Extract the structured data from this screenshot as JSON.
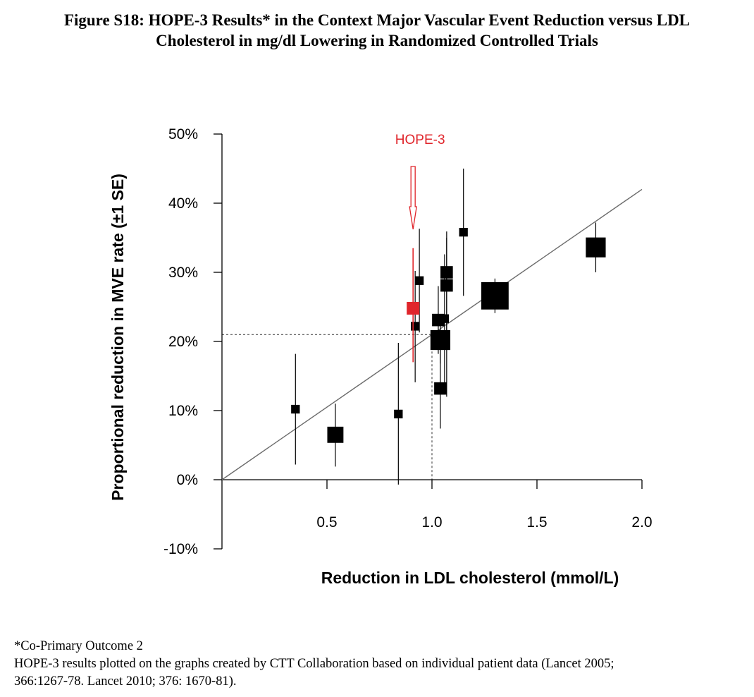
{
  "title": {
    "line1": "Figure S18: HOPE-3 Results* in the Context Major Vascular Event Reduction versus LDL",
    "line2": "Cholesterol in mg/dl Lowering in Randomized Controlled Trials"
  },
  "footnote": {
    "line1": "*Co-Primary Outcome 2",
    "line2": "HOPE-3 results plotted on the graphs created by CTT Collaboration based on individual patient data (Lancet 2005;",
    "line3": "366:1267-78. Lancet 2010; 376: 1670-81)."
  },
  "colors": {
    "highlight": "#e0252b",
    "points": "#000000",
    "line": "#6b6b6b"
  },
  "chart_data": {
    "type": "scatter",
    "xlabel": "Reduction in LDL cholesterol (mmol/L)",
    "ylabel": "Proportional reduction in MVE rate (±1 SE)",
    "xlim": [
      0,
      2.0
    ],
    "ylim": [
      -10,
      50
    ],
    "x_ticks": [
      {
        "value": 0.5,
        "label": "0.5"
      },
      {
        "value": 1.0,
        "label": "1.0"
      },
      {
        "value": 1.5,
        "label": "1.5"
      },
      {
        "value": 2.0,
        "label": "2.0"
      }
    ],
    "y_ticks": [
      {
        "value": -10,
        "label": "-10%"
      },
      {
        "value": 0,
        "label": "0%"
      },
      {
        "value": 10,
        "label": "10%"
      },
      {
        "value": 20,
        "label": "20%"
      },
      {
        "value": 30,
        "label": "30%"
      },
      {
        "value": 40,
        "label": "40%"
      },
      {
        "value": 50,
        "label": "50%"
      }
    ],
    "trials": [
      {
        "x": 0.35,
        "y": 10.2,
        "low": 2.2,
        "high": 18.2,
        "weight": 1
      },
      {
        "x": 0.54,
        "y": 6.5,
        "low": 1.9,
        "high": 11.0,
        "weight": 3
      },
      {
        "x": 0.84,
        "y": 9.5,
        "low": -0.7,
        "high": 19.8,
        "weight": 1
      },
      {
        "x": 0.92,
        "y": 22.2,
        "low": 14.1,
        "high": 30.2,
        "weight": 1
      },
      {
        "x": 0.94,
        "y": 28.8,
        "low": 21.3,
        "high": 36.3,
        "weight": 1
      },
      {
        "x": 1.03,
        "y": 23.1,
        "low": 18.2,
        "high": 28.0,
        "weight": 2
      },
      {
        "x": 1.04,
        "y": 13.2,
        "low": 7.4,
        "high": 19.0,
        "weight": 2
      },
      {
        "x": 1.04,
        "y": 20.2,
        "low": 16.8,
        "high": 23.6,
        "weight": 4
      },
      {
        "x": 1.06,
        "y": 23.3,
        "low": 14.0,
        "high": 32.6,
        "weight": 1
      },
      {
        "x": 1.07,
        "y": 28.1,
        "low": 20.9,
        "high": 35.9,
        "weight": 2
      },
      {
        "x": 1.07,
        "y": 30.0,
        "low": 12.0,
        "high": 35.0,
        "weight": 2
      },
      {
        "x": 1.15,
        "y": 35.8,
        "low": 26.6,
        "high": 45.0,
        "weight": 1
      },
      {
        "x": 1.3,
        "y": 26.6,
        "low": 24.1,
        "high": 29.1,
        "weight": 6
      },
      {
        "x": 1.78,
        "y": 33.6,
        "low": 30.0,
        "high": 37.2,
        "weight": 4
      }
    ],
    "highlight": {
      "label": "HOPE-3",
      "x": 0.91,
      "y": 24.8,
      "low": 17.0,
      "high": 33.5
    },
    "regression_line": {
      "x1": 0,
      "y1": 0,
      "x2": 2.0,
      "y2": 42.0
    },
    "reference_lines": {
      "x": 1.0,
      "y": 21.0
    }
  }
}
